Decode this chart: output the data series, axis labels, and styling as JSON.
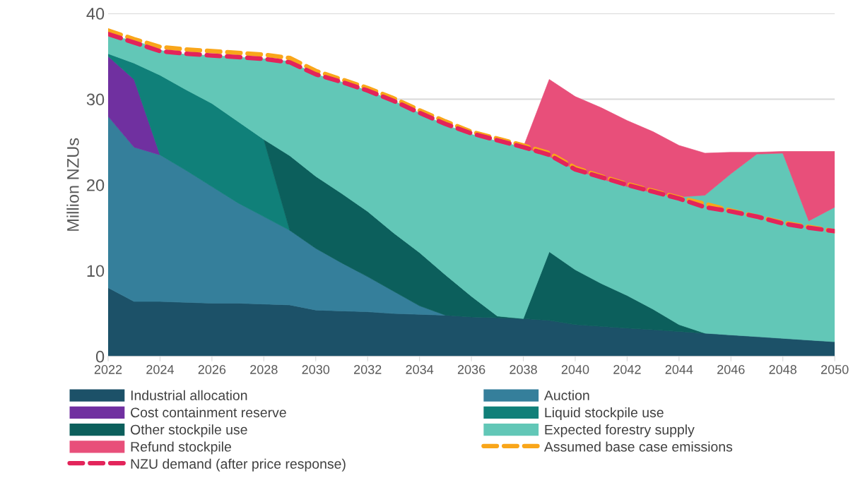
{
  "chart_data": {
    "type": "area",
    "stacked": true,
    "ylabel": "Million NZUs",
    "x": [
      2022,
      2023,
      2024,
      2025,
      2026,
      2027,
      2028,
      2029,
      2030,
      2031,
      2032,
      2033,
      2034,
      2035,
      2036,
      2037,
      2038,
      2039,
      2040,
      2041,
      2042,
      2043,
      2044,
      2045,
      2046,
      2047,
      2048,
      2049,
      2050
    ],
    "xlim": [
      2022,
      2050
    ],
    "xticks": [
      2022,
      2024,
      2026,
      2028,
      2030,
      2032,
      2034,
      2036,
      2038,
      2040,
      2042,
      2044,
      2046,
      2048,
      2050
    ],
    "ylim": [
      0,
      40
    ],
    "yticks": [
      0,
      10,
      20,
      30,
      40
    ],
    "grid": "y",
    "legend": "bottom",
    "series": [
      {
        "name": "Industrial allocation",
        "color": "#1c5168",
        "values": [
          8.0,
          6.4,
          6.4,
          6.3,
          6.2,
          6.2,
          6.1,
          6.0,
          5.4,
          5.3,
          5.2,
          5.0,
          4.9,
          4.8,
          4.6,
          4.5,
          4.4,
          4.2,
          3.7,
          3.5,
          3.3,
          3.1,
          2.9,
          2.7,
          2.5,
          2.3,
          2.1,
          1.9,
          1.7
        ]
      },
      {
        "name": "Auction",
        "color": "#357f9b",
        "values": [
          20.0,
          18.0,
          17.1,
          15.4,
          13.6,
          11.7,
          10.2,
          8.7,
          7.2,
          5.6,
          4.1,
          2.6,
          1.0,
          0,
          null,
          null,
          null,
          null,
          null,
          null,
          null,
          null,
          null,
          null,
          null,
          null,
          null,
          null,
          null
        ]
      },
      {
        "name": "Cost containment reserve",
        "color": "#7030a0",
        "values": [
          7.0,
          7.9,
          0,
          null,
          null,
          null,
          null,
          null,
          null,
          null,
          null,
          null,
          null,
          null,
          null,
          null,
          null,
          null,
          null,
          null,
          null,
          null,
          null,
          null,
          null,
          null,
          null,
          null,
          null
        ]
      },
      {
        "name": "Liquid stockpile use",
        "color": "#108079",
        "values": [
          0.3,
          1.9,
          9.3,
          9.4,
          9.7,
          9.5,
          9.0,
          0,
          null,
          null,
          null,
          null,
          null,
          null,
          null,
          null,
          null,
          null,
          null,
          null,
          null,
          null,
          null,
          null,
          null,
          null,
          null,
          null,
          null
        ]
      },
      {
        "name": "Other stockpile use",
        "color": "#0c5f5c",
        "values": [
          null,
          null,
          null,
          null,
          null,
          null,
          0,
          8.7,
          8.4,
          8.1,
          7.6,
          6.8,
          6.2,
          4.7,
          2.4,
          0.2,
          0,
          8.0,
          6.4,
          5.0,
          3.8,
          2.4,
          0.8,
          0,
          null,
          null,
          null,
          null,
          null
        ]
      },
      {
        "name": "Expected forestry supply",
        "color": "#62c7b7",
        "values": [
          2.0,
          2.7,
          2.9,
          4.1,
          5.6,
          7.5,
          9.4,
          11.0,
          11.9,
          13.0,
          14.1,
          15.4,
          16.3,
          17.5,
          18.9,
          20.4,
          20.0,
          11.1,
          11.7,
          12.2,
          12.7,
          13.6,
          14.9,
          16.1,
          18.8,
          21.3,
          21.6,
          13.9,
          15.7
        ]
      },
      {
        "name": "Refund stockpile",
        "color": "#e84f7a",
        "values": [
          null,
          null,
          null,
          null,
          null,
          null,
          null,
          null,
          null,
          null,
          null,
          null,
          null,
          null,
          null,
          null,
          0,
          9.0,
          8.5,
          8.3,
          7.7,
          7.1,
          6.0,
          4.9,
          2.5,
          0.2,
          0.2,
          8.1,
          6.5
        ]
      },
      {
        "name": "Assumed base case emissions",
        "type": "line",
        "line_style": "dashed",
        "color": "#f9a61a",
        "values": [
          38.0,
          37.0,
          36.1,
          35.8,
          35.6,
          35.4,
          35.2,
          34.8,
          33.3,
          32.3,
          31.3,
          30.1,
          28.7,
          27.4,
          26.2,
          25.4,
          24.6,
          23.7,
          22.0,
          21.0,
          20.1,
          19.3,
          18.5,
          17.8,
          17.0,
          16.3,
          15.6,
          15.1,
          14.6
        ]
      },
      {
        "name": "NZU demand (after price response)",
        "type": "line",
        "line_style": "dashed",
        "color": "#e3245a",
        "values": [
          37.6,
          36.6,
          35.6,
          35.3,
          35.1,
          34.9,
          34.7,
          34.3,
          32.9,
          32.0,
          31.0,
          29.8,
          28.4,
          27.1,
          26.0,
          25.2,
          24.4,
          23.5,
          21.8,
          20.9,
          20.0,
          19.2,
          18.4,
          17.4,
          16.9,
          16.3,
          15.5,
          15.0,
          14.6
        ]
      }
    ]
  }
}
